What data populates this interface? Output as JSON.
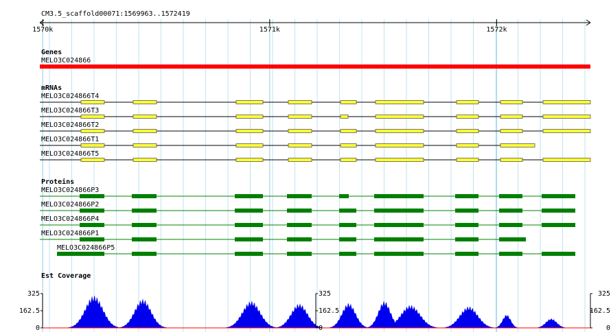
{
  "title": "CM3.5_scaffold00071:1569963..1572419",
  "ruler": {
    "xlim": [
      1569963,
      1572419
    ],
    "xticks": [
      {
        "value": 1570000,
        "label": "1570k"
      },
      {
        "value": 1571000,
        "label": "1571k"
      },
      {
        "value": 1572000,
        "label": "1572k"
      }
    ]
  },
  "tracks": {
    "genes": {
      "label": "Genes",
      "items": [
        "MELO3C024866"
      ]
    },
    "mrnas": {
      "label": "mRNAs",
      "items": [
        "MELO3C024866T4",
        "MELO3C024866T3",
        "MELO3C024866T2",
        "MELO3C024866T1",
        "MELO3C024866T5"
      ]
    },
    "proteins": {
      "label": "Proteins",
      "items": [
        "MELO3C024866P3",
        "MELO3C024866P2",
        "MELO3C024866P4",
        "MELO3C024866P1",
        "MELO3C024866P5"
      ]
    },
    "est_coverage": {
      "label": "Est Coverage",
      "ylim": [
        0,
        325
      ],
      "yticks": [
        0,
        162.5,
        325
      ]
    }
  }
}
